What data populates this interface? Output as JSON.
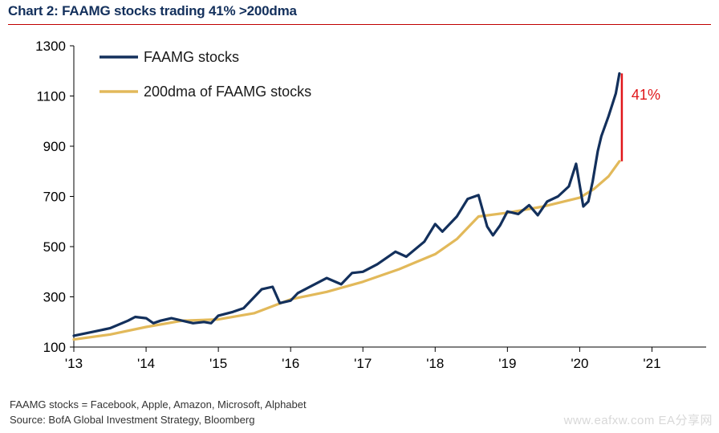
{
  "title": "Chart 2: FAAMG stocks trading 41% >200dma",
  "footnotes": [
    "FAAMG stocks = Facebook, Apple, Amazon, Microsoft, Alphabet",
    "Source: BofA Global Investment Strategy, Bloomberg"
  ],
  "watermark": "www.eafxw.com EA分享网",
  "colors": {
    "price_series": "#13305c",
    "dma_series": "#e2b95a",
    "annotation": "#e0161a"
  },
  "chart_data": {
    "type": "line",
    "title": "Chart 2: FAAMG stocks trading 41% >200dma",
    "xlabel": "",
    "ylabel": "",
    "xlim": [
      2013,
      2021.75
    ],
    "ylim": [
      100,
      1300
    ],
    "yticks": [
      100,
      300,
      500,
      700,
      900,
      1100,
      1300
    ],
    "xticks": [
      {
        "value": 2013,
        "label": "'13"
      },
      {
        "value": 2014,
        "label": "'14"
      },
      {
        "value": 2015,
        "label": "'15"
      },
      {
        "value": 2016,
        "label": "'16"
      },
      {
        "value": 2017,
        "label": "'17"
      },
      {
        "value": 2018,
        "label": "'18"
      },
      {
        "value": 2019,
        "label": "'19"
      },
      {
        "value": 2020,
        "label": "'20"
      },
      {
        "value": 2021,
        "label": "'21"
      }
    ],
    "grid": false,
    "legend": "top-left",
    "series": [
      {
        "name": "FAAMG stocks",
        "x": [
          2013.0,
          2013.25,
          2013.5,
          2013.75,
          2013.85,
          2014.0,
          2014.1,
          2014.2,
          2014.35,
          2014.5,
          2014.65,
          2014.8,
          2014.9,
          2015.0,
          2015.2,
          2015.35,
          2015.5,
          2015.6,
          2015.75,
          2015.85,
          2016.0,
          2016.1,
          2016.3,
          2016.5,
          2016.7,
          2016.85,
          2017.0,
          2017.2,
          2017.45,
          2017.6,
          2017.85,
          2018.0,
          2018.1,
          2018.3,
          2018.45,
          2018.6,
          2018.72,
          2018.8,
          2018.9,
          2019.0,
          2019.15,
          2019.3,
          2019.42,
          2019.55,
          2019.7,
          2019.85,
          2019.95,
          2020.05,
          2020.12,
          2020.18,
          2020.25,
          2020.3,
          2020.4,
          2020.5,
          2020.55
        ],
        "y": [
          145,
          160,
          175,
          205,
          220,
          215,
          195,
          205,
          215,
          205,
          195,
          200,
          195,
          225,
          240,
          255,
          300,
          330,
          340,
          275,
          285,
          315,
          345,
          375,
          350,
          395,
          400,
          430,
          480,
          460,
          520,
          590,
          560,
          620,
          690,
          705,
          580,
          545,
          585,
          640,
          630,
          665,
          625,
          680,
          700,
          740,
          830,
          660,
          680,
          760,
          880,
          940,
          1020,
          1110,
          1190
        ]
      },
      {
        "name": "200dma of FAAMG stocks",
        "x": [
          2013.0,
          2013.5,
          2014.0,
          2014.5,
          2015.0,
          2015.5,
          2016.0,
          2016.5,
          2017.0,
          2017.5,
          2018.0,
          2018.3,
          2018.6,
          2019.0,
          2019.5,
          2020.0,
          2020.2,
          2020.4,
          2020.55
        ],
        "y": [
          130,
          150,
          180,
          205,
          210,
          235,
          290,
          320,
          360,
          410,
          470,
          530,
          620,
          635,
          660,
          695,
          730,
          780,
          840
        ]
      }
    ],
    "annotations": [
      {
        "type": "vertical-bar",
        "x": 2020.55,
        "y0": 840,
        "y1": 1190,
        "label": "41%"
      }
    ]
  }
}
